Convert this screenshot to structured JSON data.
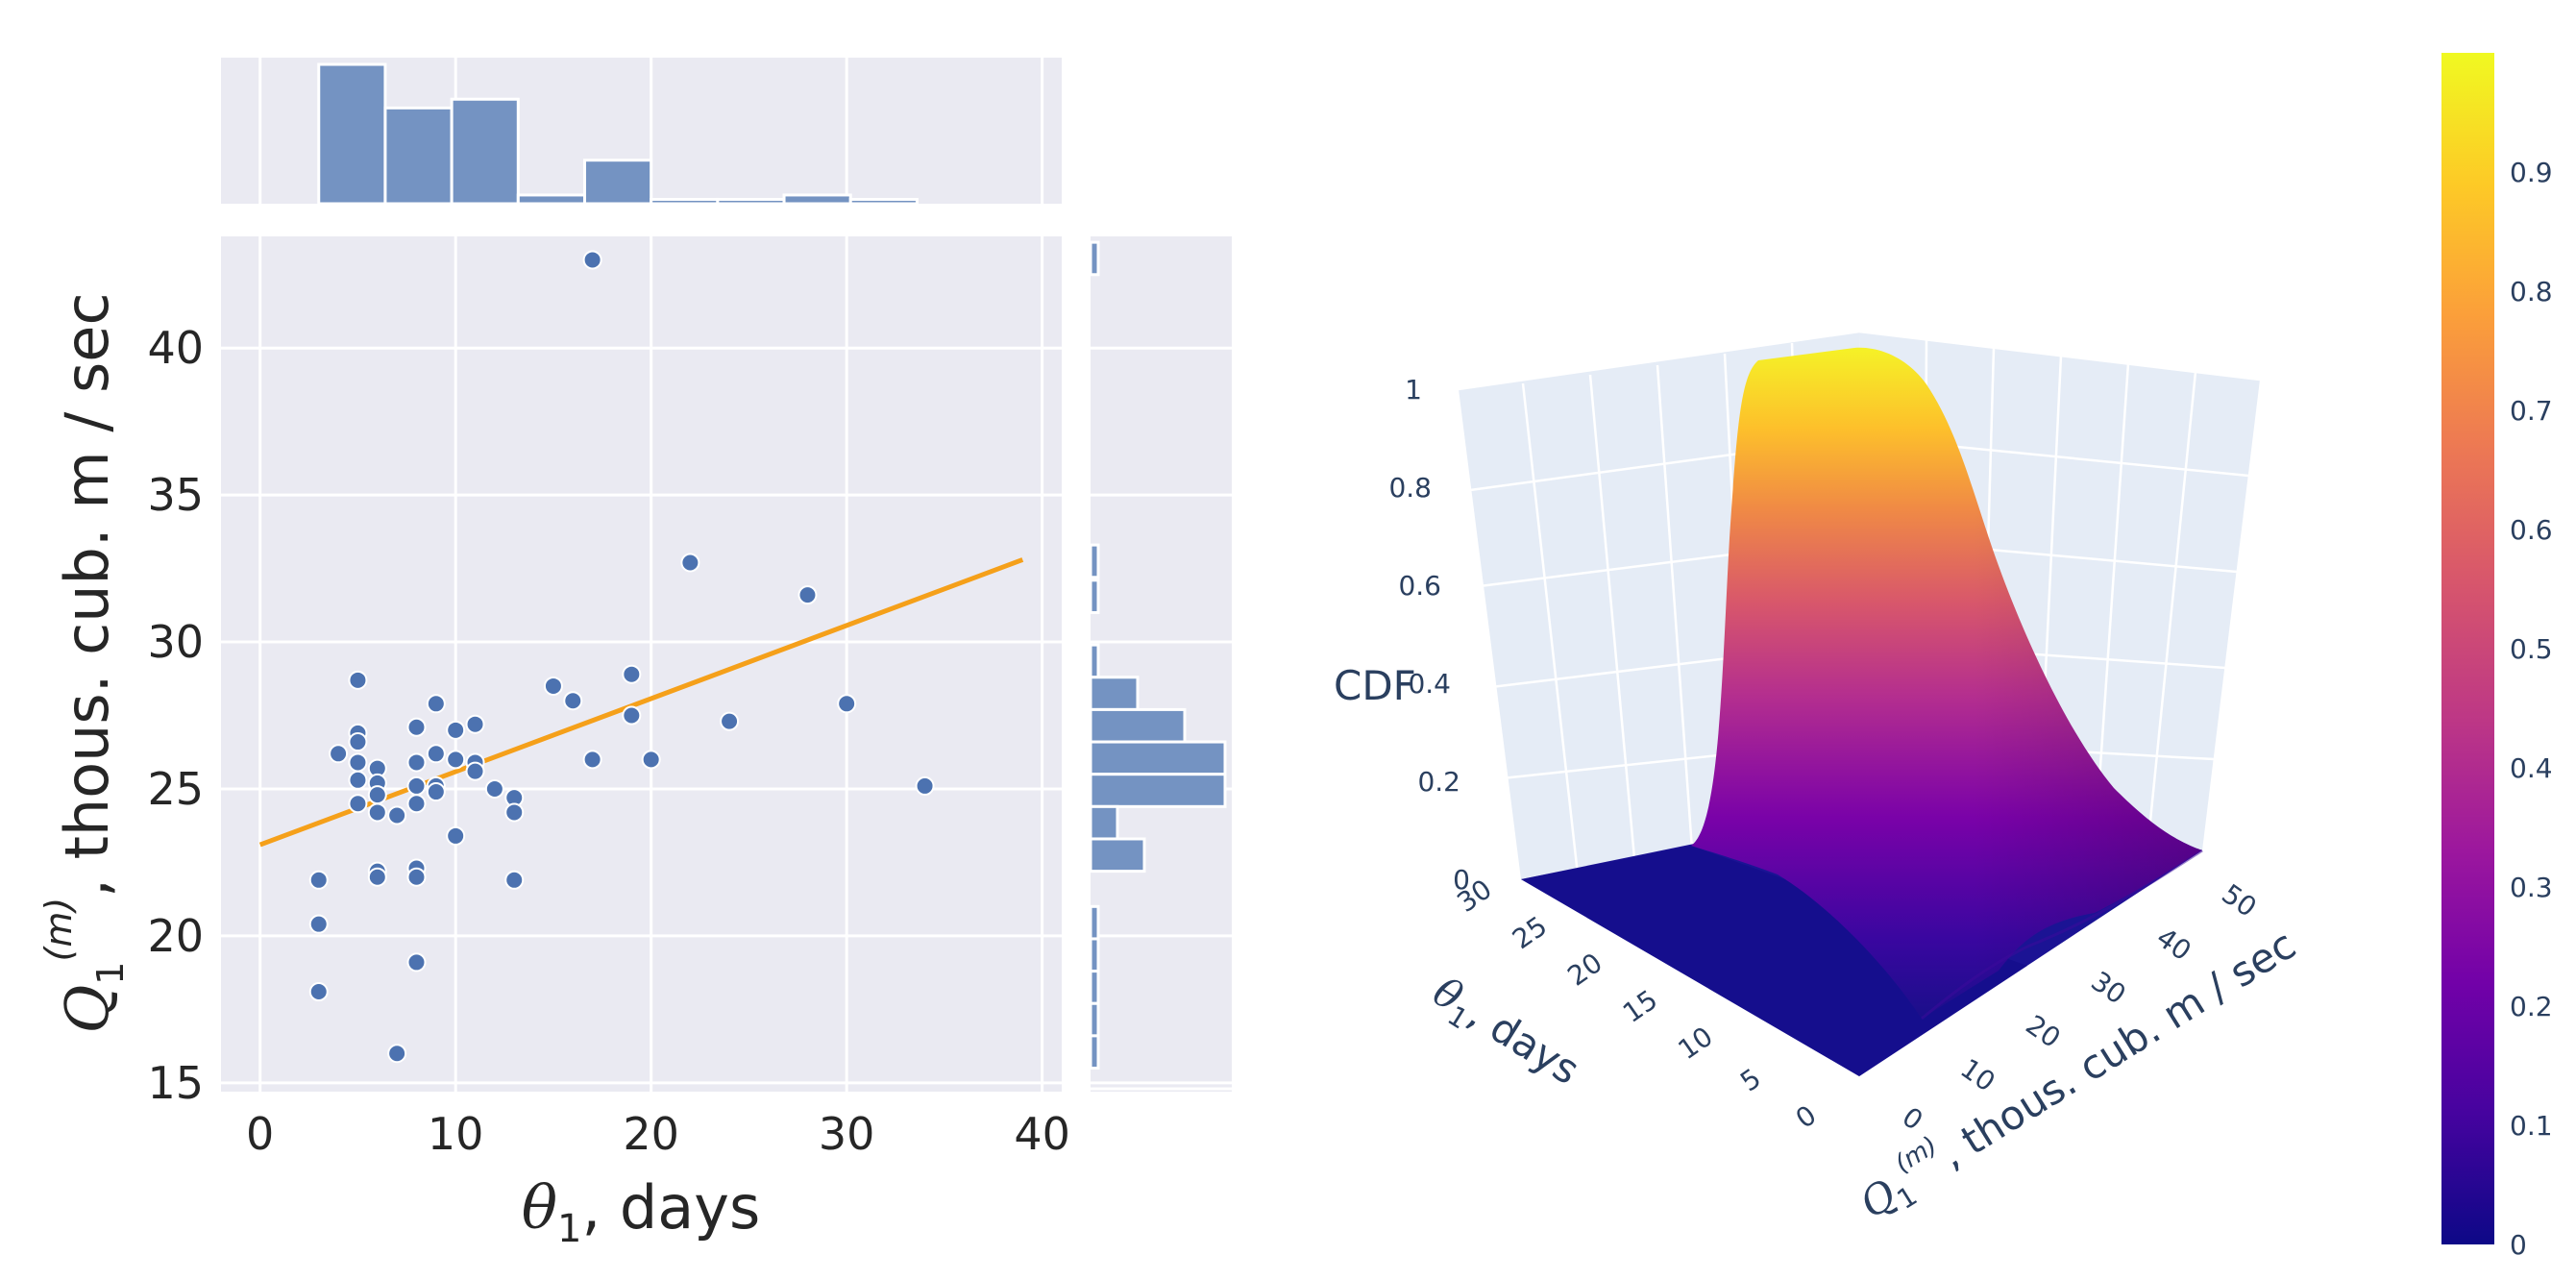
{
  "chart_data": [
    {
      "type": "scatter",
      "title": "",
      "xlabel": "θ1, days",
      "ylabel": "Q1(m), thous. cub. m / sec",
      "xlim": [
        -2,
        41
      ],
      "ylim": [
        14.7,
        43.8
      ],
      "xticks": [
        "0",
        "10",
        "20",
        "30",
        "40"
      ],
      "yticks": [
        "15",
        "20",
        "25",
        "30",
        "35",
        "40"
      ],
      "points": [
        {
          "x": 3,
          "y": 21.9
        },
        {
          "x": 3,
          "y": 20.4
        },
        {
          "x": 3,
          "y": 18.1
        },
        {
          "x": 4,
          "y": 26.2
        },
        {
          "x": 5,
          "y": 28.7
        },
        {
          "x": 5,
          "y": 26.9
        },
        {
          "x": 5,
          "y": 26.6
        },
        {
          "x": 5,
          "y": 25.9
        },
        {
          "x": 5,
          "y": 25.3
        },
        {
          "x": 5,
          "y": 24.5
        },
        {
          "x": 6,
          "y": 25.7
        },
        {
          "x": 6,
          "y": 25.2
        },
        {
          "x": 6,
          "y": 24.8
        },
        {
          "x": 6,
          "y": 24.2
        },
        {
          "x": 6,
          "y": 22.2
        },
        {
          "x": 6,
          "y": 22.0
        },
        {
          "x": 7,
          "y": 24.1
        },
        {
          "x": 7,
          "y": 16.0
        },
        {
          "x": 8,
          "y": 27.1
        },
        {
          "x": 8,
          "y": 25.9
        },
        {
          "x": 8,
          "y": 25.1
        },
        {
          "x": 8,
          "y": 24.5
        },
        {
          "x": 8,
          "y": 22.3
        },
        {
          "x": 8,
          "y": 22.0
        },
        {
          "x": 8,
          "y": 19.1
        },
        {
          "x": 9,
          "y": 27.9
        },
        {
          "x": 9,
          "y": 26.2
        },
        {
          "x": 9,
          "y": 25.1
        },
        {
          "x": 9,
          "y": 24.9
        },
        {
          "x": 10,
          "y": 27.0
        },
        {
          "x": 10,
          "y": 26.0
        },
        {
          "x": 10,
          "y": 23.4
        },
        {
          "x": 11,
          "y": 27.2
        },
        {
          "x": 11,
          "y": 25.9
        },
        {
          "x": 11,
          "y": 25.6
        },
        {
          "x": 12,
          "y": 25.0
        },
        {
          "x": 13,
          "y": 24.7
        },
        {
          "x": 13,
          "y": 24.2
        },
        {
          "x": 13,
          "y": 21.9
        },
        {
          "x": 15,
          "y": 28.5
        },
        {
          "x": 16,
          "y": 28.0
        },
        {
          "x": 17,
          "y": 43.0
        },
        {
          "x": 17,
          "y": 26.0
        },
        {
          "x": 19,
          "y": 28.9
        },
        {
          "x": 19,
          "y": 27.5
        },
        {
          "x": 20,
          "y": 26.0
        },
        {
          "x": 22,
          "y": 32.7
        },
        {
          "x": 24,
          "y": 27.3
        },
        {
          "x": 28,
          "y": 31.6
        },
        {
          "x": 30,
          "y": 27.9
        },
        {
          "x": 34,
          "y": 25.1
        }
      ],
      "regression_line": {
        "x": [
          0,
          39
        ],
        "y": [
          23.1,
          32.8
        ]
      }
    },
    {
      "type": "histogram",
      "orientation": "vertical",
      "variable": "θ1, days",
      "bin_edges": [
        3,
        6.4,
        9.8,
        13.2,
        16.6,
        20,
        23.4,
        26.8,
        30.2,
        33.6
      ],
      "counts": [
        16,
        11,
        12,
        1,
        5,
        0.5,
        0.5,
        1,
        0.5
      ]
    },
    {
      "type": "histogram",
      "orientation": "horizontal",
      "variable": "Q1(m), thous. cub. m / sec",
      "bins": [
        {
          "from": 42.5,
          "to": 43.6,
          "count": 1
        },
        {
          "from": 32.2,
          "to": 33.3,
          "count": 1
        },
        {
          "from": 31.0,
          "to": 32.1,
          "count": 1
        },
        {
          "from": 28.8,
          "to": 29.9,
          "count": 1
        },
        {
          "from": 27.7,
          "to": 28.8,
          "count": 7
        },
        {
          "from": 26.6,
          "to": 27.7,
          "count": 14
        },
        {
          "from": 25.5,
          "to": 26.6,
          "count": 20
        },
        {
          "from": 24.4,
          "to": 25.5,
          "count": 20
        },
        {
          "from": 23.3,
          "to": 24.4,
          "count": 4
        },
        {
          "from": 22.2,
          "to": 23.3,
          "count": 8
        },
        {
          "from": 19.9,
          "to": 21.0,
          "count": 1
        },
        {
          "from": 18.8,
          "to": 19.9,
          "count": 1
        },
        {
          "from": 17.7,
          "to": 18.8,
          "count": 1
        },
        {
          "from": 16.6,
          "to": 17.7,
          "count": 1
        },
        {
          "from": 15.5,
          "to": 16.6,
          "count": 1
        }
      ]
    },
    {
      "type": "surface",
      "zlabel": "CDF",
      "xlabel": "θ1, days",
      "ylabel": "Q1(m), thous. cub. m / sec",
      "x_ticks": [
        "0",
        "5",
        "10",
        "15",
        "20",
        "25",
        "30"
      ],
      "y_ticks": [
        "0",
        "10",
        "20",
        "30",
        "40",
        "50"
      ],
      "z_ticks": [
        "0",
        "0.2",
        "0.4",
        "0.6",
        "0.8",
        "1"
      ],
      "colorbar": {
        "ticks": [
          "0",
          "0.1",
          "0.2",
          "0.3",
          "0.4",
          "0.5",
          "0.6",
          "0.7",
          "0.8",
          "0.9"
        ],
        "colorscale": [
          "#0d0887",
          "#46039f",
          "#7201a8",
          "#9c179e",
          "#bd3786",
          "#d8576b",
          "#ed7953",
          "#fb9f3a",
          "#fdca26",
          "#f0f921"
        ]
      }
    }
  ],
  "colors": {
    "points": "#4c72b0",
    "bars": "#7493c2",
    "regression": "#f5a01a",
    "panel_bg": "#eaeaf2",
    "scene_bg": "#e5ecf6"
  }
}
